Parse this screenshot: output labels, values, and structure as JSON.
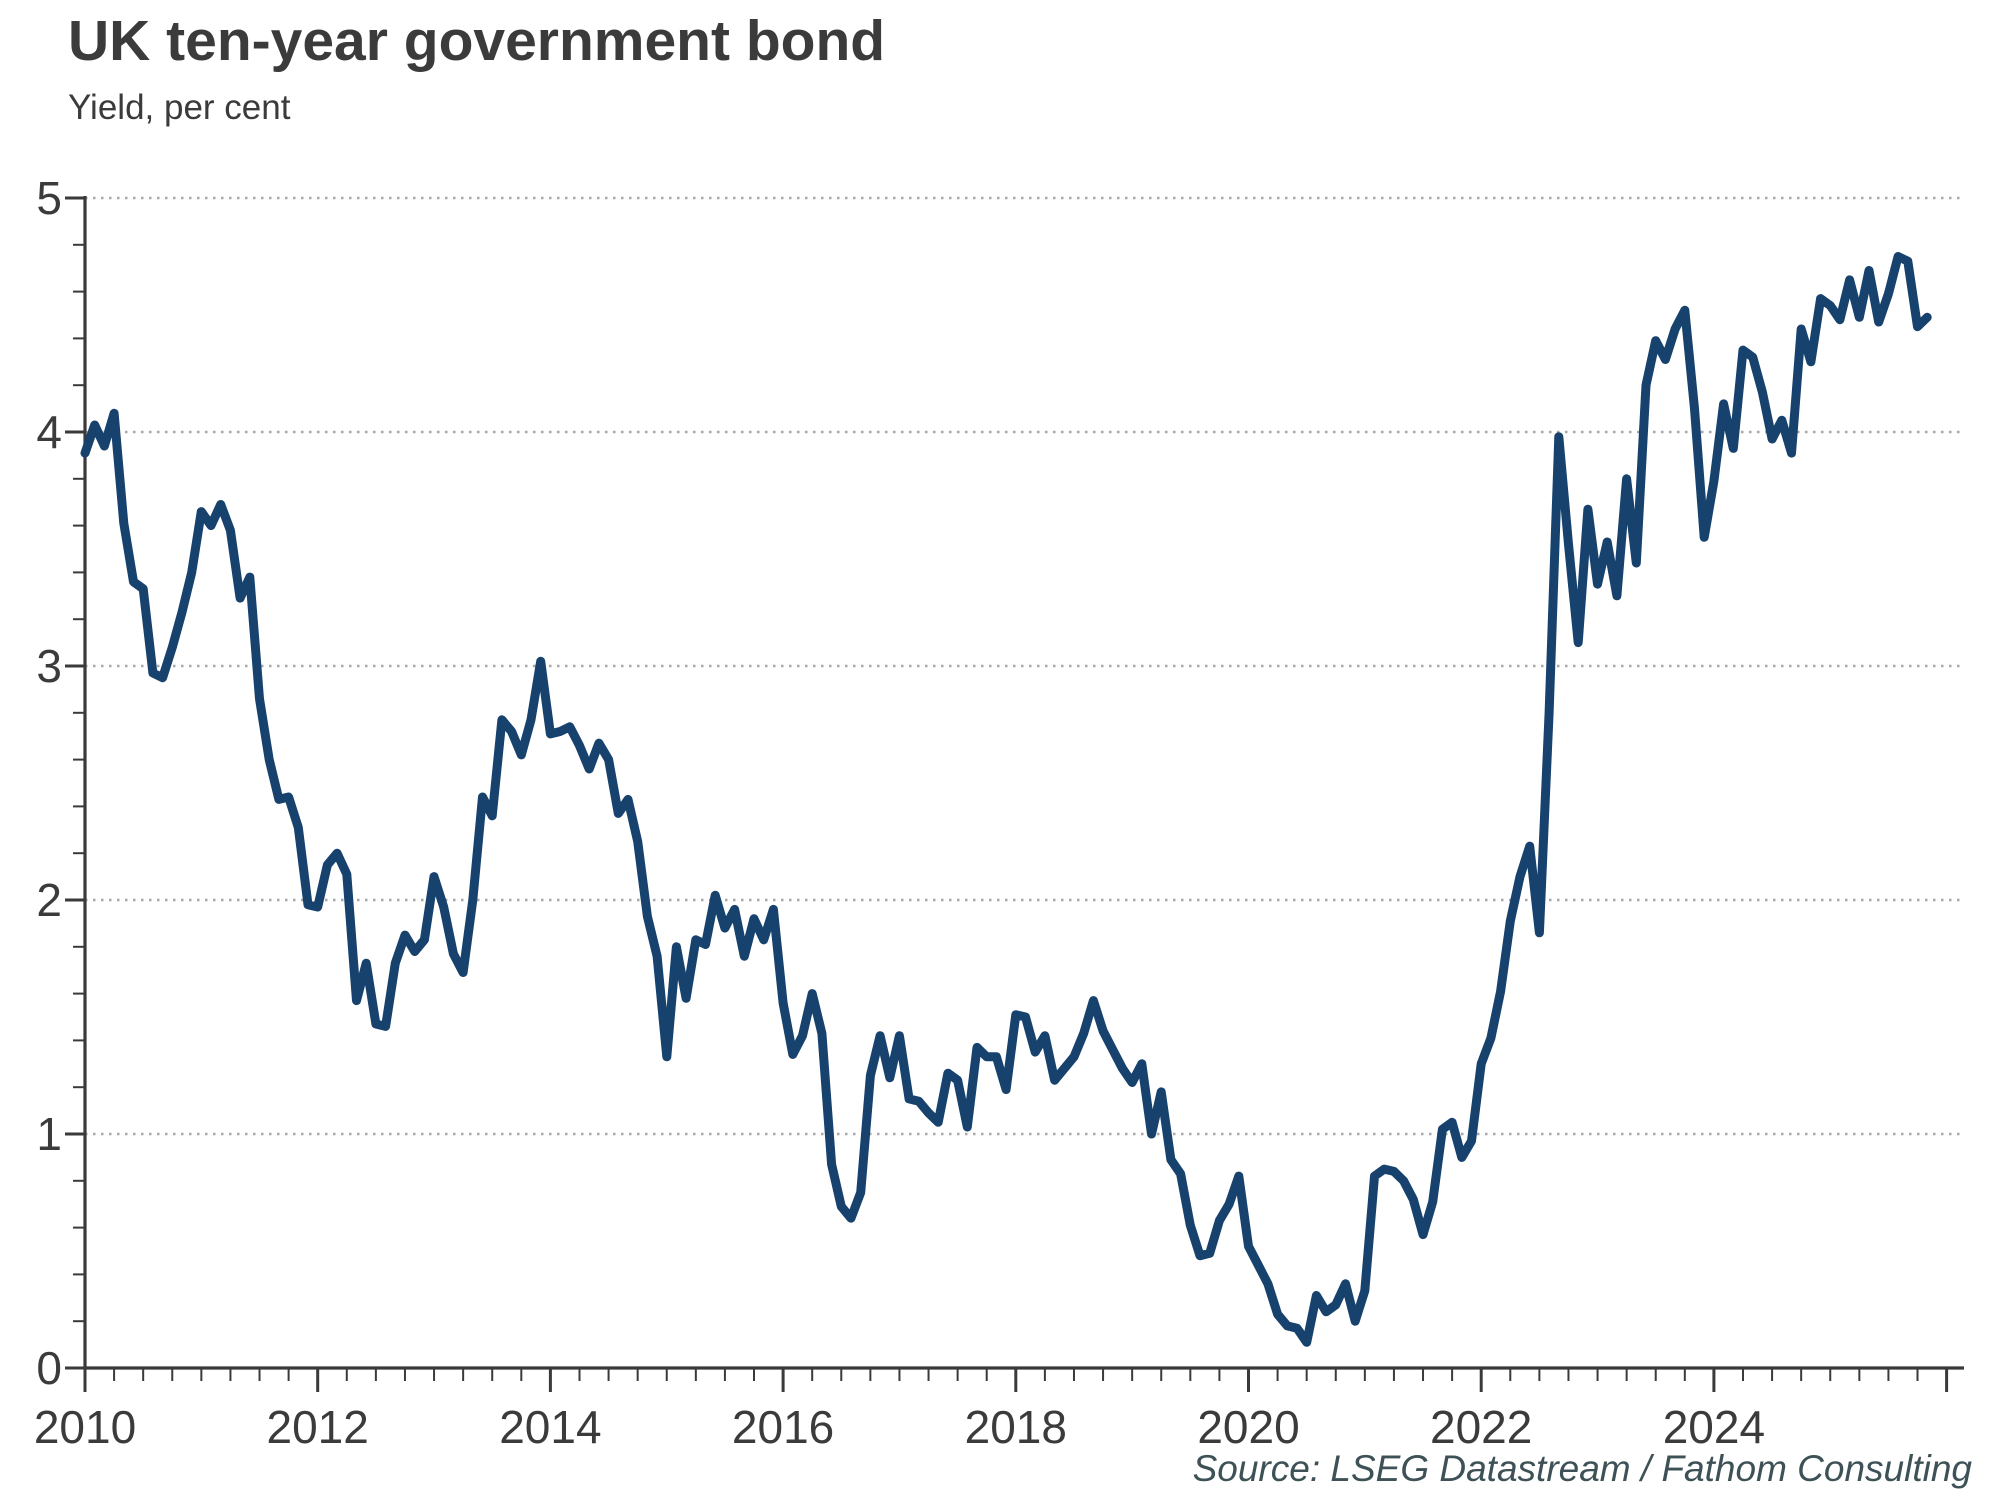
{
  "page": {
    "background": "#ffffff"
  },
  "header": {
    "title": "UK ten-year government bond",
    "subtitle": "Yield, per cent"
  },
  "footer": {
    "source": "Source: LSEG Datastream / Fathom Consulting"
  },
  "chart_data": {
    "type": "line",
    "title": "UK ten-year government bond",
    "subtitle": "Yield, per cent",
    "ylabel": "Yield, per cent",
    "xlabel": "",
    "ylim": [
      0,
      5
    ],
    "y_ticks": [
      0,
      1,
      2,
      3,
      4,
      5
    ],
    "y_minor_step": 0.2,
    "x_tick_years": [
      2010,
      2012,
      2014,
      2016,
      2018,
      2020,
      2022,
      2024
    ],
    "x_axis_start_year": 2010,
    "x_axis_end_year": 2026,
    "x_minor_step_years": 0.25,
    "grid": "horizontal-dotted",
    "legend": "none",
    "frequency": "monthly",
    "period_start": "2010-01",
    "period_end": "2025-11",
    "line_color": "#17426d",
    "grid_color": "#a8a8a8",
    "axis_color": "#3a3a3a",
    "text_color": "#3b3b3b",
    "source_color": "#3d5156",
    "series": [
      {
        "name": "UK 10-year government bond yield, per cent",
        "values": [
          3.91,
          4.03,
          3.94,
          4.08,
          3.61,
          3.36,
          3.33,
          2.97,
          2.95,
          3.08,
          3.23,
          3.4,
          3.66,
          3.6,
          3.69,
          3.58,
          3.29,
          3.38,
          2.86,
          2.6,
          2.43,
          2.44,
          2.31,
          1.98,
          1.97,
          2.15,
          2.2,
          2.11,
          1.57,
          1.73,
          1.47,
          1.46,
          1.73,
          1.85,
          1.78,
          1.83,
          2.1,
          1.97,
          1.77,
          1.69,
          2.0,
          2.44,
          2.36,
          2.77,
          2.72,
          2.62,
          2.77,
          3.02,
          2.71,
          2.72,
          2.74,
          2.66,
          2.56,
          2.67,
          2.6,
          2.37,
          2.43,
          2.25,
          1.93,
          1.76,
          1.33,
          1.8,
          1.58,
          1.83,
          1.81,
          2.02,
          1.88,
          1.96,
          1.76,
          1.92,
          1.83,
          1.96,
          1.56,
          1.34,
          1.42,
          1.6,
          1.43,
          0.87,
          0.69,
          0.64,
          0.75,
          1.25,
          1.42,
          1.24,
          1.42,
          1.15,
          1.14,
          1.09,
          1.05,
          1.26,
          1.23,
          1.03,
          1.37,
          1.33,
          1.33,
          1.19,
          1.51,
          1.5,
          1.35,
          1.42,
          1.23,
          1.28,
          1.33,
          1.43,
          1.57,
          1.44,
          1.36,
          1.28,
          1.22,
          1.3,
          1.0,
          1.18,
          0.89,
          0.83,
          0.61,
          0.48,
          0.49,
          0.63,
          0.7,
          0.82,
          0.52,
          0.44,
          0.36,
          0.23,
          0.18,
          0.17,
          0.11,
          0.31,
          0.24,
          0.27,
          0.36,
          0.2,
          0.33,
          0.82,
          0.85,
          0.84,
          0.8,
          0.72,
          0.57,
          0.71,
          1.02,
          1.05,
          0.9,
          0.97,
          1.3,
          1.41,
          1.61,
          1.91,
          2.1,
          2.23,
          1.86,
          2.8,
          3.98,
          3.52,
          3.1,
          3.67,
          3.35,
          3.53,
          3.3,
          3.8,
          3.44,
          4.2,
          4.39,
          4.31,
          4.44,
          4.52,
          4.1,
          3.55,
          3.79,
          4.12,
          3.93,
          4.35,
          4.32,
          4.17,
          3.97,
          4.05,
          3.91,
          4.44,
          4.3,
          4.57,
          4.54,
          4.48,
          4.65,
          4.49,
          4.69,
          4.47,
          4.59,
          4.75,
          4.73,
          4.45,
          4.49
        ]
      }
    ]
  }
}
